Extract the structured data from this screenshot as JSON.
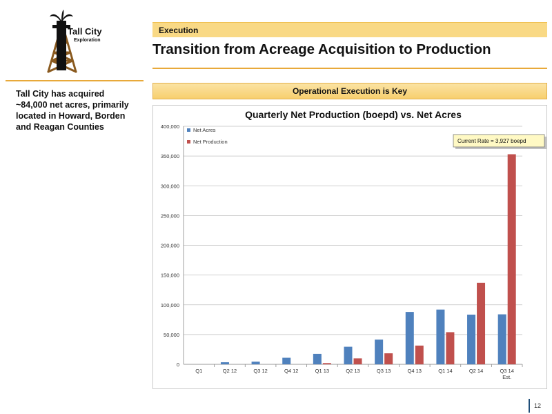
{
  "logo": {
    "line1": "Tall City",
    "line2": "Exploration"
  },
  "header": {
    "section": "Execution",
    "title": "Transition from Acreage Acquisition to Production"
  },
  "sidebar": {
    "text": "Tall City has acquired ~84,000 net acres, primarily located in Howard, Borden and Reagan Counties"
  },
  "banner": {
    "text": "Operational Execution is Key"
  },
  "colors": {
    "net_acres": "#4f81bd",
    "net_production": "#c0504d",
    "banner": "#f9d985",
    "rule": "#e8a93a"
  },
  "chart_data": {
    "type": "bar",
    "title": "Quarterly Net Production (boepd) vs. Net Acres",
    "categories": [
      "Q1",
      "Q2 12",
      "Q3 12",
      "Q4 12",
      "Q1 13",
      "Q2 13",
      "Q3 13",
      "Q4 13",
      "Q1 14",
      "Q2 14",
      "Q3 14 Est."
    ],
    "series": [
      {
        "name": "Net Acres",
        "values": [
          0,
          3500,
          4500,
          11000,
          17500,
          29500,
          41500,
          88000,
          92000,
          83500,
          84000
        ]
      },
      {
        "name": "Net Production",
        "values": [
          0,
          0,
          0,
          0,
          2000,
          10000,
          18500,
          31500,
          54000,
          137000,
          353000
        ]
      }
    ],
    "ylim": [
      0,
      400000
    ],
    "yticks": [
      0,
      50000,
      100000,
      150000,
      200000,
      250000,
      300000,
      350000,
      400000
    ],
    "ytick_labels": [
      "0",
      "50,000",
      "100,000",
      "150,000",
      "200,000",
      "250,000",
      "300,000",
      "350,000",
      "400,000"
    ],
    "grid": true,
    "legend_position": "top-left",
    "annotation": "Current Rate = 3,927 boepd",
    "xlabel": "",
    "ylabel": ""
  },
  "footer": {
    "page_number": "12"
  }
}
